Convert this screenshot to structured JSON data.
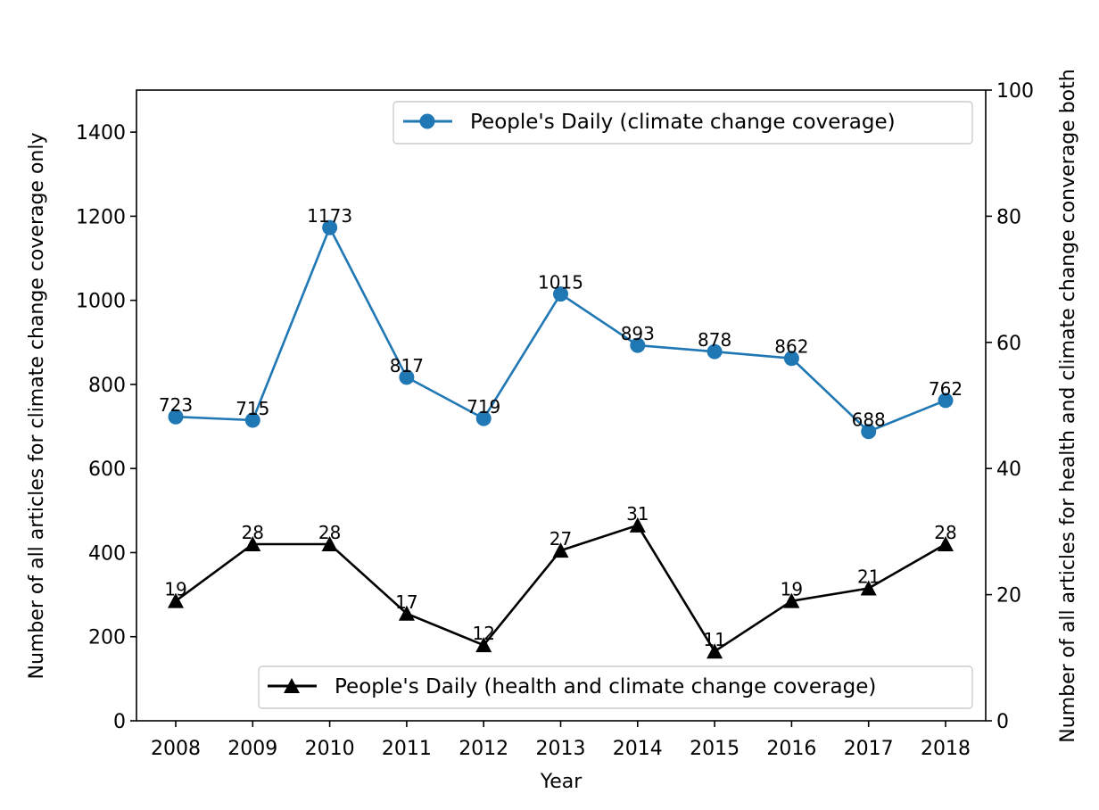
{
  "chart_data": {
    "type": "line",
    "title": "",
    "xlabel": "Year",
    "ylabel_left": "Number of all articles for climate change coverage only",
    "ylabel_right": "Number of all articles for health and climate change converage both",
    "x": [
      "2008",
      "2009",
      "2010",
      "2011",
      "2012",
      "2013",
      "2014",
      "2015",
      "2016",
      "2017",
      "2018"
    ],
    "ylim_left": [
      0,
      1500
    ],
    "ylim_right": [
      0,
      100
    ],
    "yticks_left": [
      "0",
      "200",
      "400",
      "600",
      "800",
      "1000",
      "1200",
      "1400"
    ],
    "yticks_right": [
      "0",
      "20",
      "40",
      "60",
      "80",
      "100"
    ],
    "grid": false,
    "series": [
      {
        "name": "People's Daily (climate change coverage)",
        "axis": "left",
        "color": "#1f77b4",
        "marker": "circle",
        "legend_position": "upper right",
        "values": [
          723,
          715,
          1173,
          817,
          719,
          1015,
          893,
          878,
          862,
          688,
          762
        ],
        "labels": [
          "723",
          "715",
          "1173",
          "817",
          "719",
          "1015",
          "893",
          "878",
          "862",
          "688",
          "762"
        ]
      },
      {
        "name": "People's Daily (health and climate change coverage)",
        "axis": "right",
        "color": "#000000",
        "marker": "triangle",
        "legend_position": "lower right",
        "values": [
          19,
          28,
          28,
          17,
          12,
          27,
          31,
          11,
          19,
          21,
          28
        ],
        "labels": [
          "19",
          "28",
          "28",
          "17",
          "12",
          "27",
          "31",
          "11",
          "19",
          "21",
          "28"
        ]
      }
    ]
  }
}
